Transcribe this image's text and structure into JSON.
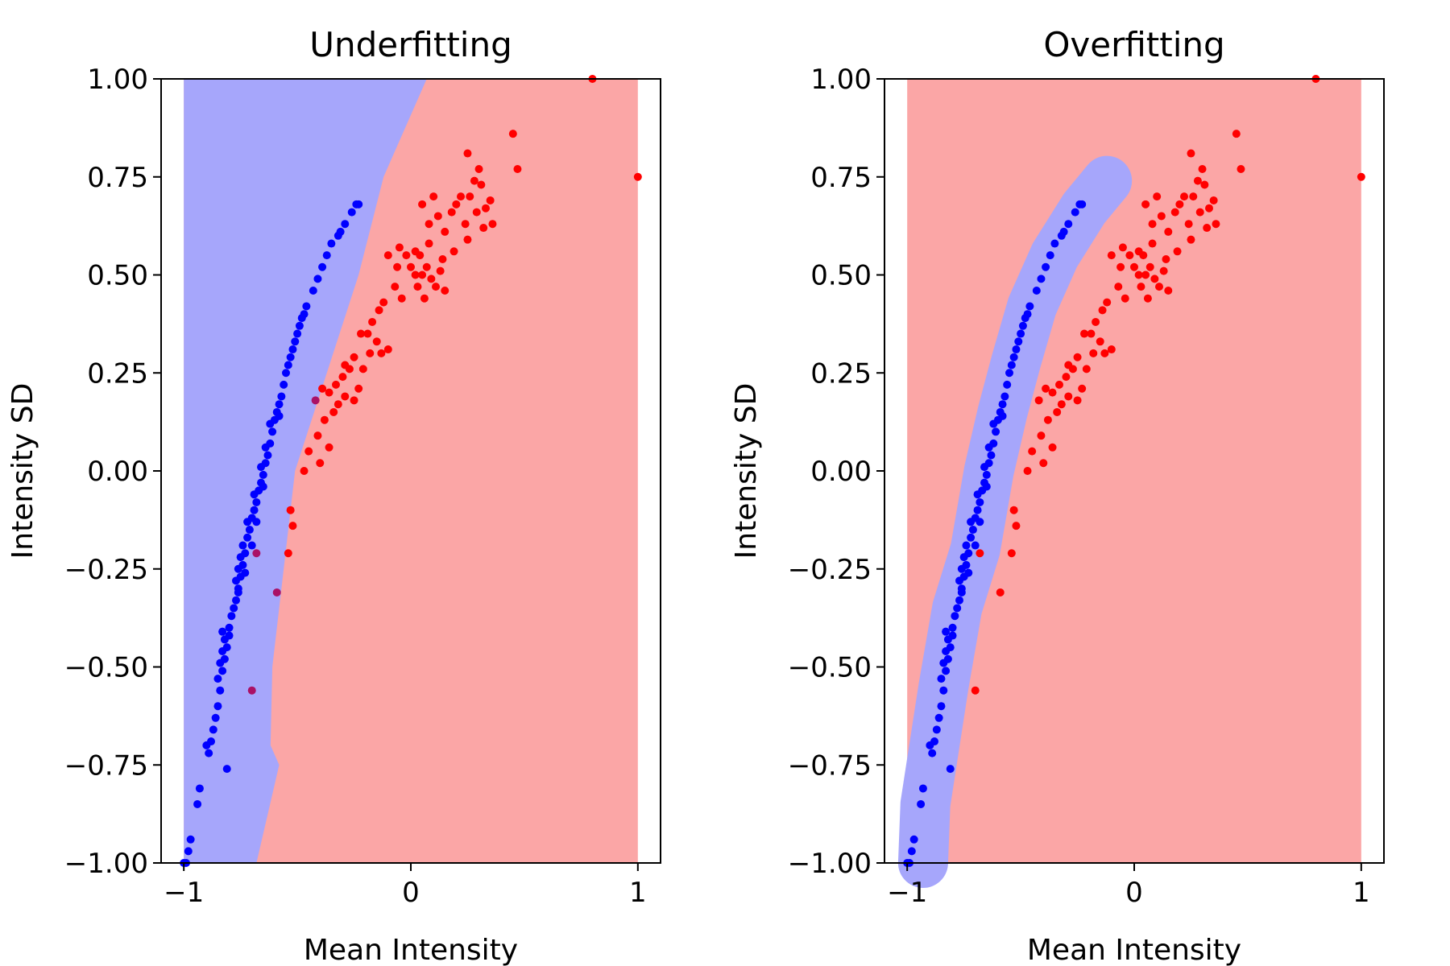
{
  "chart_data": [
    {
      "type": "scatter",
      "title": "Underfitting",
      "xlabel": "Mean Intensity",
      "ylabel": "Intensity SD",
      "xlim": [
        -1.1,
        1.1
      ],
      "ylim": [
        -1.0,
        1.0
      ],
      "xticks": [
        "−1",
        "0",
        "1"
      ],
      "yticks": [
        "1.00",
        "0.75",
        "0.50",
        "0.25",
        "0.00",
        "−0.25",
        "−0.50",
        "−0.75",
        "−1.00"
      ],
      "grid": false,
      "background_regions": "decision regions (blue class / red class) over x from -1 to 1",
      "colors": {
        "blue_class": "#0000ff",
        "red_class": "#ff0000",
        "blue_region": "#a6a6fb",
        "red_region": "#fba6a6",
        "misclassified": "#aa1166"
      }
    },
    {
      "type": "scatter",
      "title": "Overfitting",
      "xlabel": "Mean Intensity",
      "ylabel": "Intensity SD",
      "xlim": [
        -1.1,
        1.1
      ],
      "ylim": [
        -1.0,
        1.0
      ],
      "xticks": [
        "−1",
        "0",
        "1"
      ],
      "yticks": [
        "1.00",
        "0.75",
        "0.50",
        "0.25",
        "0.00",
        "−0.25",
        "−0.50",
        "−0.75",
        "−1.00"
      ],
      "grid": false,
      "background_regions": "decision regions (thin blue band around blue class, red elsewhere) over x from -1 to 1",
      "colors": {
        "blue_class": "#0000ff",
        "red_class": "#ff0000",
        "blue_region": "#a6a6fb",
        "red_region": "#fba6a6"
      }
    }
  ],
  "points": {
    "blue": [
      [
        -1.0,
        -1.0
      ],
      [
        -0.99,
        -1.0
      ],
      [
        -0.97,
        -0.94
      ],
      [
        -0.98,
        -0.97
      ],
      [
        -0.94,
        -0.85
      ],
      [
        -0.93,
        -0.81
      ],
      [
        -0.9,
        -0.7
      ],
      [
        -0.88,
        -0.69
      ],
      [
        -0.89,
        -0.72
      ],
      [
        -0.86,
        -0.63
      ],
      [
        -0.87,
        -0.66
      ],
      [
        -0.85,
        -0.6
      ],
      [
        -0.84,
        -0.56
      ],
      [
        -0.85,
        -0.53
      ],
      [
        -0.83,
        -0.51
      ],
      [
        -0.84,
        -0.49
      ],
      [
        -0.82,
        -0.48
      ],
      [
        -0.83,
        -0.46
      ],
      [
        -0.81,
        -0.45
      ],
      [
        -0.82,
        -0.43
      ],
      [
        -0.83,
        -0.41
      ],
      [
        -0.8,
        -0.4
      ],
      [
        -0.79,
        -0.37
      ],
      [
        -0.78,
        -0.35
      ],
      [
        -0.8,
        -0.42
      ],
      [
        -0.77,
        -0.33
      ],
      [
        -0.76,
        -0.3
      ],
      [
        -0.77,
        -0.28
      ],
      [
        -0.75,
        -0.27
      ],
      [
        -0.76,
        -0.25
      ],
      [
        -0.74,
        -0.24
      ],
      [
        -0.75,
        -0.22
      ],
      [
        -0.73,
        -0.21
      ],
      [
        -0.74,
        -0.19
      ],
      [
        -0.72,
        -0.17
      ],
      [
        -0.71,
        -0.15
      ],
      [
        -0.72,
        -0.13
      ],
      [
        -0.7,
        -0.12
      ],
      [
        -0.69,
        -0.1
      ],
      [
        -0.68,
        -0.08
      ],
      [
        -0.69,
        -0.06
      ],
      [
        -0.67,
        -0.05
      ],
      [
        -0.66,
        -0.03
      ],
      [
        -0.65,
        -0.01
      ],
      [
        -0.66,
        0.01
      ],
      [
        -0.64,
        0.02
      ],
      [
        -0.63,
        0.04
      ],
      [
        -0.64,
        0.06
      ],
      [
        -0.62,
        0.07
      ],
      [
        -0.61,
        0.1
      ],
      [
        -0.62,
        0.12
      ],
      [
        -0.6,
        0.13
      ],
      [
        -0.59,
        0.15
      ],
      [
        -0.58,
        0.17
      ],
      [
        -0.57,
        0.19
      ],
      [
        -0.58,
        0.14
      ],
      [
        -0.56,
        0.22
      ],
      [
        -0.55,
        0.25
      ],
      [
        -0.54,
        0.27
      ],
      [
        -0.53,
        0.29
      ],
      [
        -0.52,
        0.31
      ],
      [
        -0.51,
        0.33
      ],
      [
        -0.5,
        0.35
      ],
      [
        -0.49,
        0.37
      ],
      [
        -0.48,
        0.39
      ],
      [
        -0.47,
        0.4
      ],
      [
        -0.46,
        0.42
      ],
      [
        -0.43,
        0.46
      ],
      [
        -0.41,
        0.49
      ],
      [
        -0.39,
        0.52
      ],
      [
        -0.37,
        0.55
      ],
      [
        -0.35,
        0.58
      ],
      [
        -0.32,
        0.6
      ],
      [
        -0.31,
        0.61
      ],
      [
        -0.29,
        0.63
      ],
      [
        -0.26,
        0.66
      ],
      [
        -0.24,
        0.68
      ],
      [
        -0.23,
        0.68
      ],
      [
        -0.81,
        -0.76
      ],
      [
        -0.76,
        -0.31
      ],
      [
        -0.73,
        -0.26
      ],
      [
        -0.7,
        -0.19
      ],
      [
        -0.68,
        -0.13
      ],
      [
        -0.65,
        -0.04
      ]
    ],
    "red": [
      [
        0.8,
        1.0
      ],
      [
        1.0,
        0.75
      ],
      [
        0.45,
        0.86
      ],
      [
        0.47,
        0.77
      ],
      [
        0.25,
        0.81
      ],
      [
        0.3,
        0.77
      ],
      [
        0.28,
        0.74
      ],
      [
        0.31,
        0.73
      ],
      [
        0.26,
        0.7
      ],
      [
        0.35,
        0.69
      ],
      [
        0.22,
        0.7
      ],
      [
        0.33,
        0.67
      ],
      [
        0.29,
        0.66
      ],
      [
        0.2,
        0.68
      ],
      [
        0.18,
        0.66
      ],
      [
        0.24,
        0.63
      ],
      [
        0.32,
        0.62
      ],
      [
        0.1,
        0.7
      ],
      [
        0.05,
        0.68
      ],
      [
        0.12,
        0.65
      ],
      [
        0.08,
        0.63
      ],
      [
        0.15,
        0.61
      ],
      [
        0.25,
        0.59
      ],
      [
        0.19,
        0.56
      ],
      [
        0.14,
        0.54
      ],
      [
        0.07,
        0.52
      ],
      [
        0.04,
        0.55
      ],
      [
        0.02,
        0.5
      ],
      [
        0.09,
        0.49
      ],
      [
        0.11,
        0.47
      ],
      [
        0.06,
        0.44
      ],
      [
        0.03,
        0.47
      ],
      [
        0.0,
        0.52
      ],
      [
        -0.02,
        0.55
      ],
      [
        -0.05,
        0.57
      ],
      [
        -0.1,
        0.55
      ],
      [
        -0.07,
        0.47
      ],
      [
        -0.04,
        0.44
      ],
      [
        -0.12,
        0.43
      ],
      [
        -0.14,
        0.41
      ],
      [
        -0.17,
        0.38
      ],
      [
        -0.19,
        0.35
      ],
      [
        -0.22,
        0.35
      ],
      [
        -0.15,
        0.33
      ],
      [
        -0.1,
        0.31
      ],
      [
        -0.18,
        0.3
      ],
      [
        -0.25,
        0.29
      ],
      [
        -0.27,
        0.26
      ],
      [
        -0.3,
        0.24
      ],
      [
        -0.33,
        0.22
      ],
      [
        -0.36,
        0.2
      ],
      [
        -0.29,
        0.19
      ],
      [
        -0.25,
        0.18
      ],
      [
        -0.32,
        0.17
      ],
      [
        -0.34,
        0.15
      ],
      [
        -0.39,
        0.21
      ],
      [
        -0.42,
        0.18
      ],
      [
        -0.38,
        0.13
      ],
      [
        -0.41,
        0.09
      ],
      [
        -0.36,
        0.06
      ],
      [
        -0.45,
        0.05
      ],
      [
        -0.4,
        0.02
      ],
      [
        -0.47,
        0.0
      ],
      [
        -0.53,
        -0.1
      ],
      [
        -0.52,
        -0.14
      ],
      [
        -0.54,
        -0.21
      ],
      [
        -0.59,
        -0.31
      ],
      [
        -0.68,
        -0.21
      ],
      [
        -0.7,
        -0.56
      ],
      [
        0.08,
        0.58
      ],
      [
        0.13,
        0.51
      ],
      [
        -0.23,
        0.21
      ],
      [
        -0.13,
        0.3
      ],
      [
        -0.21,
        0.26
      ],
      [
        0.15,
        0.46
      ],
      [
        -0.29,
        0.27
      ],
      [
        0.36,
        0.63
      ],
      [
        0.02,
        0.56
      ],
      [
        -0.06,
        0.52
      ],
      [
        0.05,
        0.5
      ]
    ]
  }
}
